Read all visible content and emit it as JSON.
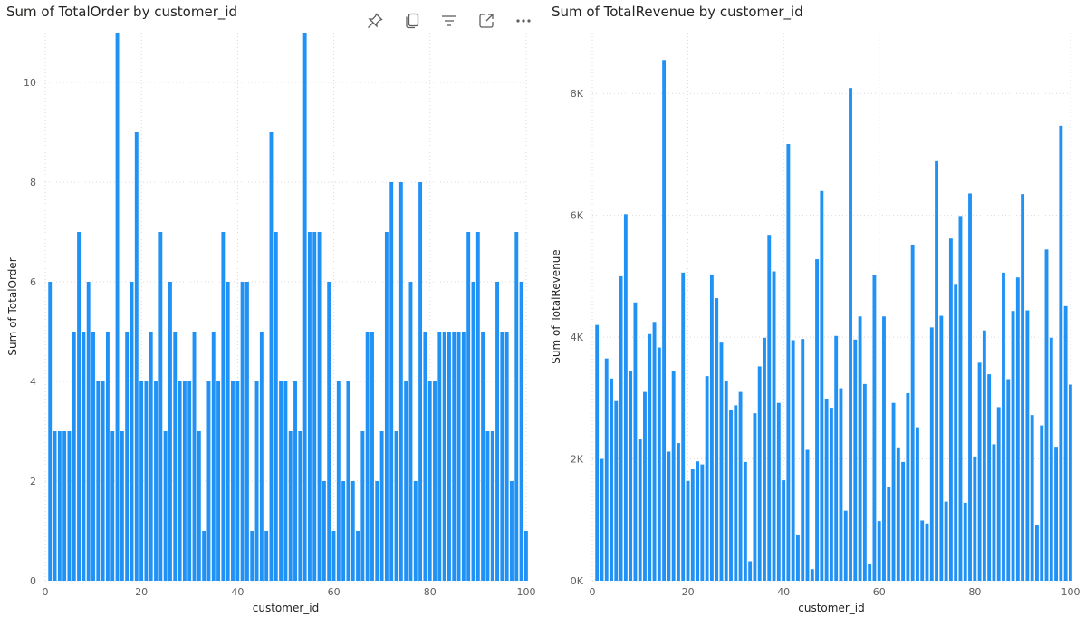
{
  "colors": {
    "bar": "#2192F5",
    "grid": "#D9D9D9",
    "text": "#605E5C",
    "title": "#252423"
  },
  "toolbar": {
    "icons": [
      "pin-icon",
      "copy-icon",
      "filter-icon",
      "focus-mode-icon",
      "more-options-icon"
    ]
  },
  "chart_data": [
    {
      "type": "bar",
      "title": "Sum of TotalOrder by customer_id",
      "xlabel": "customer_id",
      "ylabel": "Sum of TotalOrder",
      "xlim": [
        0,
        100
      ],
      "ylim": [
        0,
        11
      ],
      "x_ticks": [
        "0",
        "20",
        "40",
        "60",
        "80",
        "100"
      ],
      "y_ticks": [
        "0",
        "2",
        "4",
        "6",
        "8",
        "10"
      ],
      "grid": true,
      "x": [
        1,
        2,
        3,
        4,
        5,
        6,
        7,
        8,
        9,
        10,
        11,
        12,
        13,
        14,
        15,
        16,
        17,
        18,
        19,
        20,
        21,
        22,
        23,
        24,
        25,
        26,
        27,
        28,
        29,
        30,
        31,
        32,
        33,
        34,
        35,
        36,
        37,
        38,
        39,
        40,
        41,
        42,
        43,
        44,
        45,
        46,
        47,
        48,
        49,
        50,
        51,
        52,
        53,
        54,
        55,
        56,
        57,
        58,
        59,
        60,
        61,
        62,
        63,
        64,
        65,
        66,
        67,
        68,
        69,
        70,
        71,
        72,
        73,
        74,
        75,
        76,
        77,
        78,
        79,
        80,
        81,
        82,
        83,
        84,
        85,
        86,
        87,
        88,
        89,
        90,
        91,
        92,
        93,
        94,
        95,
        96,
        97,
        98,
        99,
        100
      ],
      "values": [
        6,
        3,
        3,
        3,
        3,
        5,
        7,
        5,
        6,
        5,
        4,
        4,
        5,
        3,
        11,
        3,
        5,
        6,
        9,
        4,
        4,
        5,
        4,
        7,
        3,
        6,
        5,
        4,
        4,
        4,
        5,
        3,
        1,
        4,
        5,
        4,
        7,
        6,
        4,
        4,
        6,
        6,
        1,
        4,
        5,
        1,
        9,
        7,
        4,
        4,
        3,
        4,
        3,
        11,
        7,
        7,
        7,
        2,
        6,
        1,
        4,
        2,
        4,
        2,
        1,
        3,
        5,
        5,
        2,
        3,
        7,
        8,
        3,
        8,
        4,
        6,
        2,
        8,
        5,
        4,
        4,
        5,
        5,
        5,
        5,
        5,
        5,
        7,
        6,
        7,
        5,
        3,
        3,
        6,
        5,
        5,
        2,
        7,
        6,
        1
      ]
    },
    {
      "type": "bar",
      "title": "Sum of TotalRevenue by customer_id",
      "xlabel": "customer_id",
      "ylabel": "Sum of TotalRevenue",
      "xlim": [
        0,
        100
      ],
      "ylim": [
        0,
        9000
      ],
      "x_ticks": [
        "0",
        "20",
        "40",
        "60",
        "80",
        "100"
      ],
      "y_ticks": [
        "0K",
        "2K",
        "4K",
        "6K",
        "8K"
      ],
      "grid": true,
      "x": [
        1,
        2,
        3,
        4,
        5,
        6,
        7,
        8,
        9,
        10,
        11,
        12,
        13,
        14,
        15,
        16,
        17,
        18,
        19,
        20,
        21,
        22,
        23,
        24,
        25,
        26,
        27,
        28,
        29,
        30,
        31,
        32,
        33,
        34,
        35,
        36,
        37,
        38,
        39,
        40,
        41,
        42,
        43,
        44,
        45,
        46,
        47,
        48,
        49,
        50,
        51,
        52,
        53,
        54,
        55,
        56,
        57,
        58,
        59,
        60,
        61,
        62,
        63,
        64,
        65,
        66,
        67,
        68,
        69,
        70,
        71,
        72,
        73,
        74,
        75,
        76,
        77,
        78,
        79,
        80,
        81,
        82,
        83,
        84,
        85,
        86,
        87,
        88,
        89,
        90,
        91,
        92,
        93,
        94,
        95,
        96,
        97,
        98,
        99,
        100
      ],
      "values": [
        4200,
        2000,
        3650,
        3320,
        2950,
        5000,
        6020,
        3450,
        4570,
        2320,
        3100,
        4050,
        4250,
        3830,
        8550,
        2120,
        3450,
        2260,
        5060,
        1640,
        1830,
        1960,
        1910,
        3360,
        5030,
        4640,
        3910,
        3280,
        2800,
        2880,
        3100,
        1950,
        320,
        2750,
        3520,
        3990,
        5680,
        5080,
        2920,
        1650,
        7170,
        3950,
        760,
        3970,
        2150,
        190,
        5280,
        6400,
        2990,
        2840,
        4020,
        3160,
        1150,
        8090,
        3960,
        4340,
        3230,
        270,
        5020,
        980,
        4340,
        1540,
        2920,
        2190,
        1950,
        3080,
        5520,
        2520,
        990,
        940,
        4160,
        6890,
        4350,
        1300,
        5620,
        4860,
        5990,
        1280,
        6360,
        2040,
        3580,
        4110,
        3390,
        2240,
        2850,
        5060,
        3310,
        4430,
        4980,
        6350,
        4440,
        2720,
        910,
        2550,
        5440,
        3990,
        2200,
        7470,
        4510,
        3220
      ]
    }
  ]
}
